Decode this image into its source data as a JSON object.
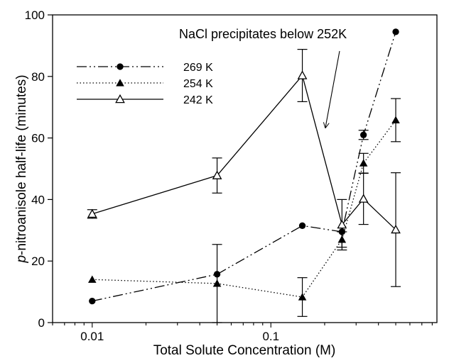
{
  "chart_data": {
    "type": "line",
    "xlabel": "Total Solute Concentration (M)",
    "ylabel_italic": "p",
    "ylabel_rest": "-nitroanisole half-life (minutes)",
    "annotation": "NaCl precipitates below 252K",
    "x_scale": "log",
    "xlim": [
      0.006,
      0.85
    ],
    "ylim": [
      0,
      100
    ],
    "x_ticks": [
      0.01,
      0.1
    ],
    "x_tick_labels": [
      "0.01",
      "0.1"
    ],
    "y_ticks": [
      0,
      20,
      40,
      60,
      80,
      100
    ],
    "y_tick_labels": [
      "0",
      "20",
      "40",
      "60",
      "80",
      "100"
    ],
    "grid": false,
    "legend_position": "top-left",
    "series": [
      {
        "name": "269 K",
        "marker": "filled-circle",
        "line_style": "dash-dot-dot",
        "x": [
          0.01,
          0.05,
          0.15,
          0.25,
          0.33,
          0.5
        ],
        "y": [
          7,
          15.7,
          31.5,
          29.5,
          61,
          94.5
        ],
        "err": [
          0,
          0,
          0,
          0,
          1.5,
          0
        ]
      },
      {
        "name": "254 K",
        "marker": "filled-triangle",
        "line_style": "dotted",
        "x": [
          0.01,
          0.05,
          0.15,
          0.25,
          0.33,
          0.5
        ],
        "y": [
          14,
          12.7,
          8.3,
          27,
          51.8,
          65.8
        ],
        "err": [
          0,
          12.7,
          6.3,
          2.5,
          3.2,
          7
        ]
      },
      {
        "name": "242 K",
        "marker": "open-triangle",
        "line_style": "solid",
        "x": [
          0.01,
          0.05,
          0.15,
          0.25,
          0.33,
          0.5
        ],
        "y": [
          35.3,
          47.8,
          80.3,
          31.8,
          40.2,
          30.2
        ],
        "err": [
          1.4,
          5.7,
          8.5,
          8.2,
          8.3,
          18.5
        ]
      }
    ]
  }
}
